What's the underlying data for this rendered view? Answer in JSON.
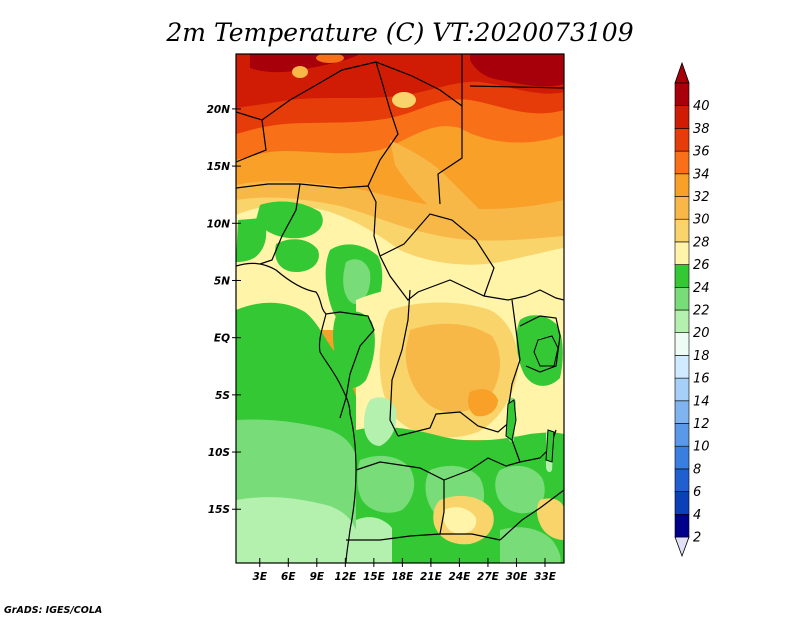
{
  "title": "2m Temperature (C) VT:2020073109",
  "credit": "GrADS: IGES/COLA",
  "lat_labels": [
    "20N",
    "15N",
    "10N",
    "5N",
    "EQ",
    "5S",
    "10S",
    "15S"
  ],
  "lat_values": [
    20,
    15,
    10,
    5,
    0,
    -5,
    -10,
    -15
  ],
  "lon_labels": [
    "3E",
    "6E",
    "9E",
    "12E",
    "15E",
    "18E",
    "21E",
    "24E",
    "27E",
    "30E",
    "33E"
  ],
  "lon_values": [
    3,
    6,
    9,
    12,
    15,
    18,
    21,
    24,
    27,
    30,
    33
  ],
  "extent": {
    "lon_min": 0.5,
    "lon_max": 35,
    "lat_min": -19.7,
    "lat_max": 24.8
  },
  "colorbar": {
    "labels": [
      "2",
      "4",
      "6",
      "8",
      "10",
      "12",
      "14",
      "16",
      "18",
      "20",
      "22",
      "24",
      "26",
      "28",
      "30",
      "32",
      "34",
      "36",
      "38",
      "40"
    ],
    "colors": [
      "#00008b",
      "#0c40b8",
      "#1f5fd0",
      "#3a7ee0",
      "#5a98e8",
      "#80b4f0",
      "#a6d0f8",
      "#d0eaff",
      "#edfcf4",
      "#b4f0ae",
      "#78dc78",
      "#34c834",
      "#fff4a8",
      "#f8d46a",
      "#f8b848",
      "#f8a028",
      "#f87018",
      "#e63c0a",
      "#d01c04",
      "#a8000a"
    ],
    "under_color": "#e0e0f8",
    "over_color": "#a8000a"
  }
}
